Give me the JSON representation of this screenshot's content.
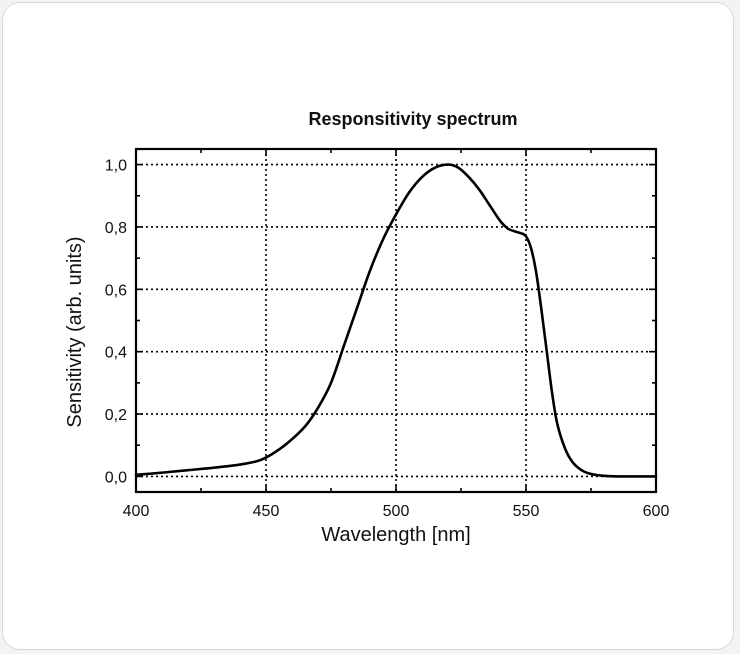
{
  "chart_data": {
    "type": "line",
    "title": "Responsitivity spectrum",
    "xlabel": "Wavelength [nm]",
    "ylabel": "Sensitivity (arb. units)",
    "xlim": [
      400,
      600
    ],
    "ylim": [
      -0.05,
      1.05
    ],
    "x_ticks": [
      400,
      450,
      500,
      550,
      600
    ],
    "x_tick_labels": [
      "400",
      "450",
      "500",
      "550",
      "600"
    ],
    "y_ticks": [
      0.0,
      0.2,
      0.4,
      0.6,
      0.8,
      1.0
    ],
    "y_tick_labels": [
      "0,0",
      "0,2",
      "0,4",
      "0,6",
      "0,8",
      "1,0"
    ],
    "grid": true,
    "series": [
      {
        "x": [
          400,
          410,
          420,
          430,
          440,
          447,
          452,
          458,
          465,
          470,
          475,
          480,
          485,
          490,
          495,
          500,
          505,
          510,
          515,
          520,
          524,
          528,
          532,
          536,
          540,
          543,
          546,
          548,
          550,
          552,
          554,
          556,
          558,
          560,
          562,
          565,
          568,
          572,
          576,
          580,
          585,
          590,
          595,
          600
        ],
        "y": [
          0.005,
          0.012,
          0.02,
          0.028,
          0.038,
          0.05,
          0.07,
          0.105,
          0.16,
          0.22,
          0.3,
          0.42,
          0.54,
          0.66,
          0.76,
          0.84,
          0.91,
          0.96,
          0.99,
          1.0,
          0.99,
          0.96,
          0.92,
          0.87,
          0.82,
          0.795,
          0.785,
          0.78,
          0.77,
          0.73,
          0.65,
          0.53,
          0.4,
          0.27,
          0.17,
          0.09,
          0.045,
          0.017,
          0.006,
          0.002,
          0.0,
          0.0,
          0.0,
          0.0
        ]
      }
    ]
  }
}
